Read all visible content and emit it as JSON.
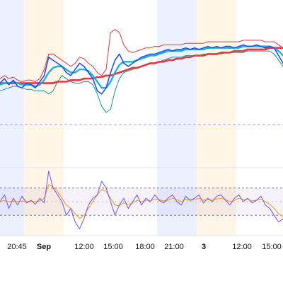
{
  "chart_data": {
    "type": "line",
    "time_axis": {
      "tick_labels": [
        "20:45",
        "Sep",
        "12:00",
        "15:00",
        "18:00",
        "21:00",
        "3",
        "12:00",
        "15:00"
      ],
      "tick_emphasis": [
        false,
        true,
        false,
        false,
        false,
        false,
        true,
        false,
        false
      ]
    },
    "session_bands": [
      {
        "from": 0,
        "to": 0.085,
        "kind": "overnight"
      },
      {
        "from": 0.085,
        "to": 0.225,
        "kind": "premarket"
      },
      {
        "from": 0.555,
        "to": 0.695,
        "kind": "overnight"
      },
      {
        "from": 0.695,
        "to": 0.835,
        "kind": "premarket"
      }
    ],
    "price_pane": {
      "y_range": [
        0,
        100
      ],
      "series": [
        {
          "role": "price",
          "color": "#2451e8",
          "values": [
            55,
            58,
            54,
            57,
            53,
            52,
            55,
            54,
            52,
            56,
            60,
            72,
            70,
            68,
            66,
            62,
            60,
            64,
            68,
            66,
            62,
            58,
            50,
            48,
            52,
            62,
            70,
            74,
            68,
            66,
            68,
            70,
            72,
            73,
            74,
            74,
            75,
            76,
            77,
            76,
            77,
            77,
            78,
            77,
            78,
            77,
            78,
            79,
            78,
            79,
            78,
            79,
            79,
            78,
            79,
            80,
            79,
            79,
            80,
            79,
            78,
            79,
            78,
            73,
            68
          ]
        },
        {
          "role": "ma_fast",
          "color": "#1fb2d6",
          "values": [
            54,
            55,
            55,
            56,
            55,
            54,
            54,
            54,
            53,
            54,
            57,
            62,
            65,
            66,
            66,
            64,
            62,
            62,
            64,
            64,
            63,
            60,
            56,
            52,
            52,
            56,
            62,
            67,
            69,
            69,
            69,
            70,
            71,
            72,
            73,
            73,
            74,
            75,
            76,
            76,
            76,
            76,
            77,
            77,
            77,
            77,
            77,
            78,
            78,
            78,
            78,
            78,
            78,
            78,
            78,
            79,
            79,
            79,
            79,
            79,
            79,
            79,
            78,
            76,
            73
          ]
        },
        {
          "role": "ma_slow",
          "color": "#e8363d",
          "values": [
            55,
            55,
            55,
            55,
            55,
            55,
            55,
            55,
            55,
            55,
            55,
            55,
            55,
            56,
            56,
            56,
            57,
            57,
            57,
            58,
            58,
            58,
            59,
            59,
            60,
            60,
            61,
            62,
            63,
            64,
            65,
            65,
            66,
            67,
            68,
            68,
            69,
            69,
            70,
            70,
            71,
            71,
            72,
            72,
            73,
            73,
            73,
            74,
            74,
            74,
            75,
            75,
            75,
            76,
            76,
            76,
            77,
            77,
            77,
            77,
            77,
            78,
            78,
            78,
            78
          ]
        },
        {
          "role": "band_upper",
          "color": "#e8363d",
          "values": [
            58,
            60,
            58,
            59,
            57,
            56,
            57,
            57,
            56,
            58,
            64,
            74,
            74,
            72,
            70,
            68,
            66,
            68,
            72,
            71,
            68,
            66,
            62,
            60,
            64,
            88,
            90,
            88,
            80,
            76,
            75,
            76,
            77,
            78,
            78,
            79,
            79,
            80,
            80,
            80,
            80,
            80,
            81,
            81,
            81,
            81,
            81,
            82,
            82,
            82,
            82,
            82,
            82,
            82,
            82,
            83,
            83,
            83,
            83,
            83,
            82,
            82,
            82,
            80,
            78
          ]
        },
        {
          "role": "band_lower",
          "color": "#0f9d8a",
          "values": [
            50,
            51,
            52,
            53,
            53,
            52,
            51,
            51,
            50,
            50,
            50,
            48,
            50,
            56,
            60,
            58,
            56,
            55,
            55,
            56,
            56,
            54,
            48,
            40,
            36,
            38,
            50,
            58,
            62,
            63,
            64,
            65,
            66,
            67,
            68,
            68,
            69,
            70,
            71,
            72,
            72,
            72,
            73,
            73,
            73,
            73,
            74,
            74,
            74,
            74,
            74,
            75,
            75,
            75,
            75,
            75,
            76,
            76,
            76,
            76,
            76,
            76,
            74,
            70,
            66
          ]
        }
      ],
      "dashed_level": 28
    },
    "oscillator_pane": {
      "y_range": [
        0,
        100
      ],
      "upper_level": 70,
      "lower_level": 30,
      "series": [
        {
          "role": "oscillator",
          "color": "#7b61ff",
          "values": [
            50,
            60,
            40,
            55,
            45,
            58,
            48,
            52,
            46,
            55,
            48,
            95,
            70,
            60,
            50,
            30,
            40,
            20,
            10,
            25,
            45,
            55,
            60,
            80,
            70,
            50,
            30,
            45,
            55,
            40,
            50,
            60,
            45,
            55,
            50,
            60,
            52,
            48,
            55,
            60,
            50,
            45,
            58,
            52,
            55,
            60,
            48,
            55,
            50,
            58,
            60,
            52,
            45,
            55,
            60,
            50,
            55,
            48,
            52,
            58,
            45,
            40,
            30,
            20,
            25
          ]
        },
        {
          "role": "signal",
          "color": "#f5a623",
          "values": [
            50,
            52,
            50,
            51,
            50,
            51,
            50,
            51,
            50,
            51,
            55,
            75,
            72,
            65,
            55,
            45,
            40,
            32,
            25,
            30,
            40,
            50,
            60,
            68,
            65,
            55,
            45,
            44,
            48,
            46,
            48,
            52,
            50,
            52,
            51,
            54,
            53,
            51,
            52,
            55,
            53,
            50,
            53,
            52,
            53,
            55,
            52,
            53,
            52,
            54,
            55,
            53,
            50,
            52,
            55,
            53,
            54,
            51,
            52,
            54,
            50,
            46,
            40,
            32,
            28
          ]
        }
      ]
    }
  }
}
